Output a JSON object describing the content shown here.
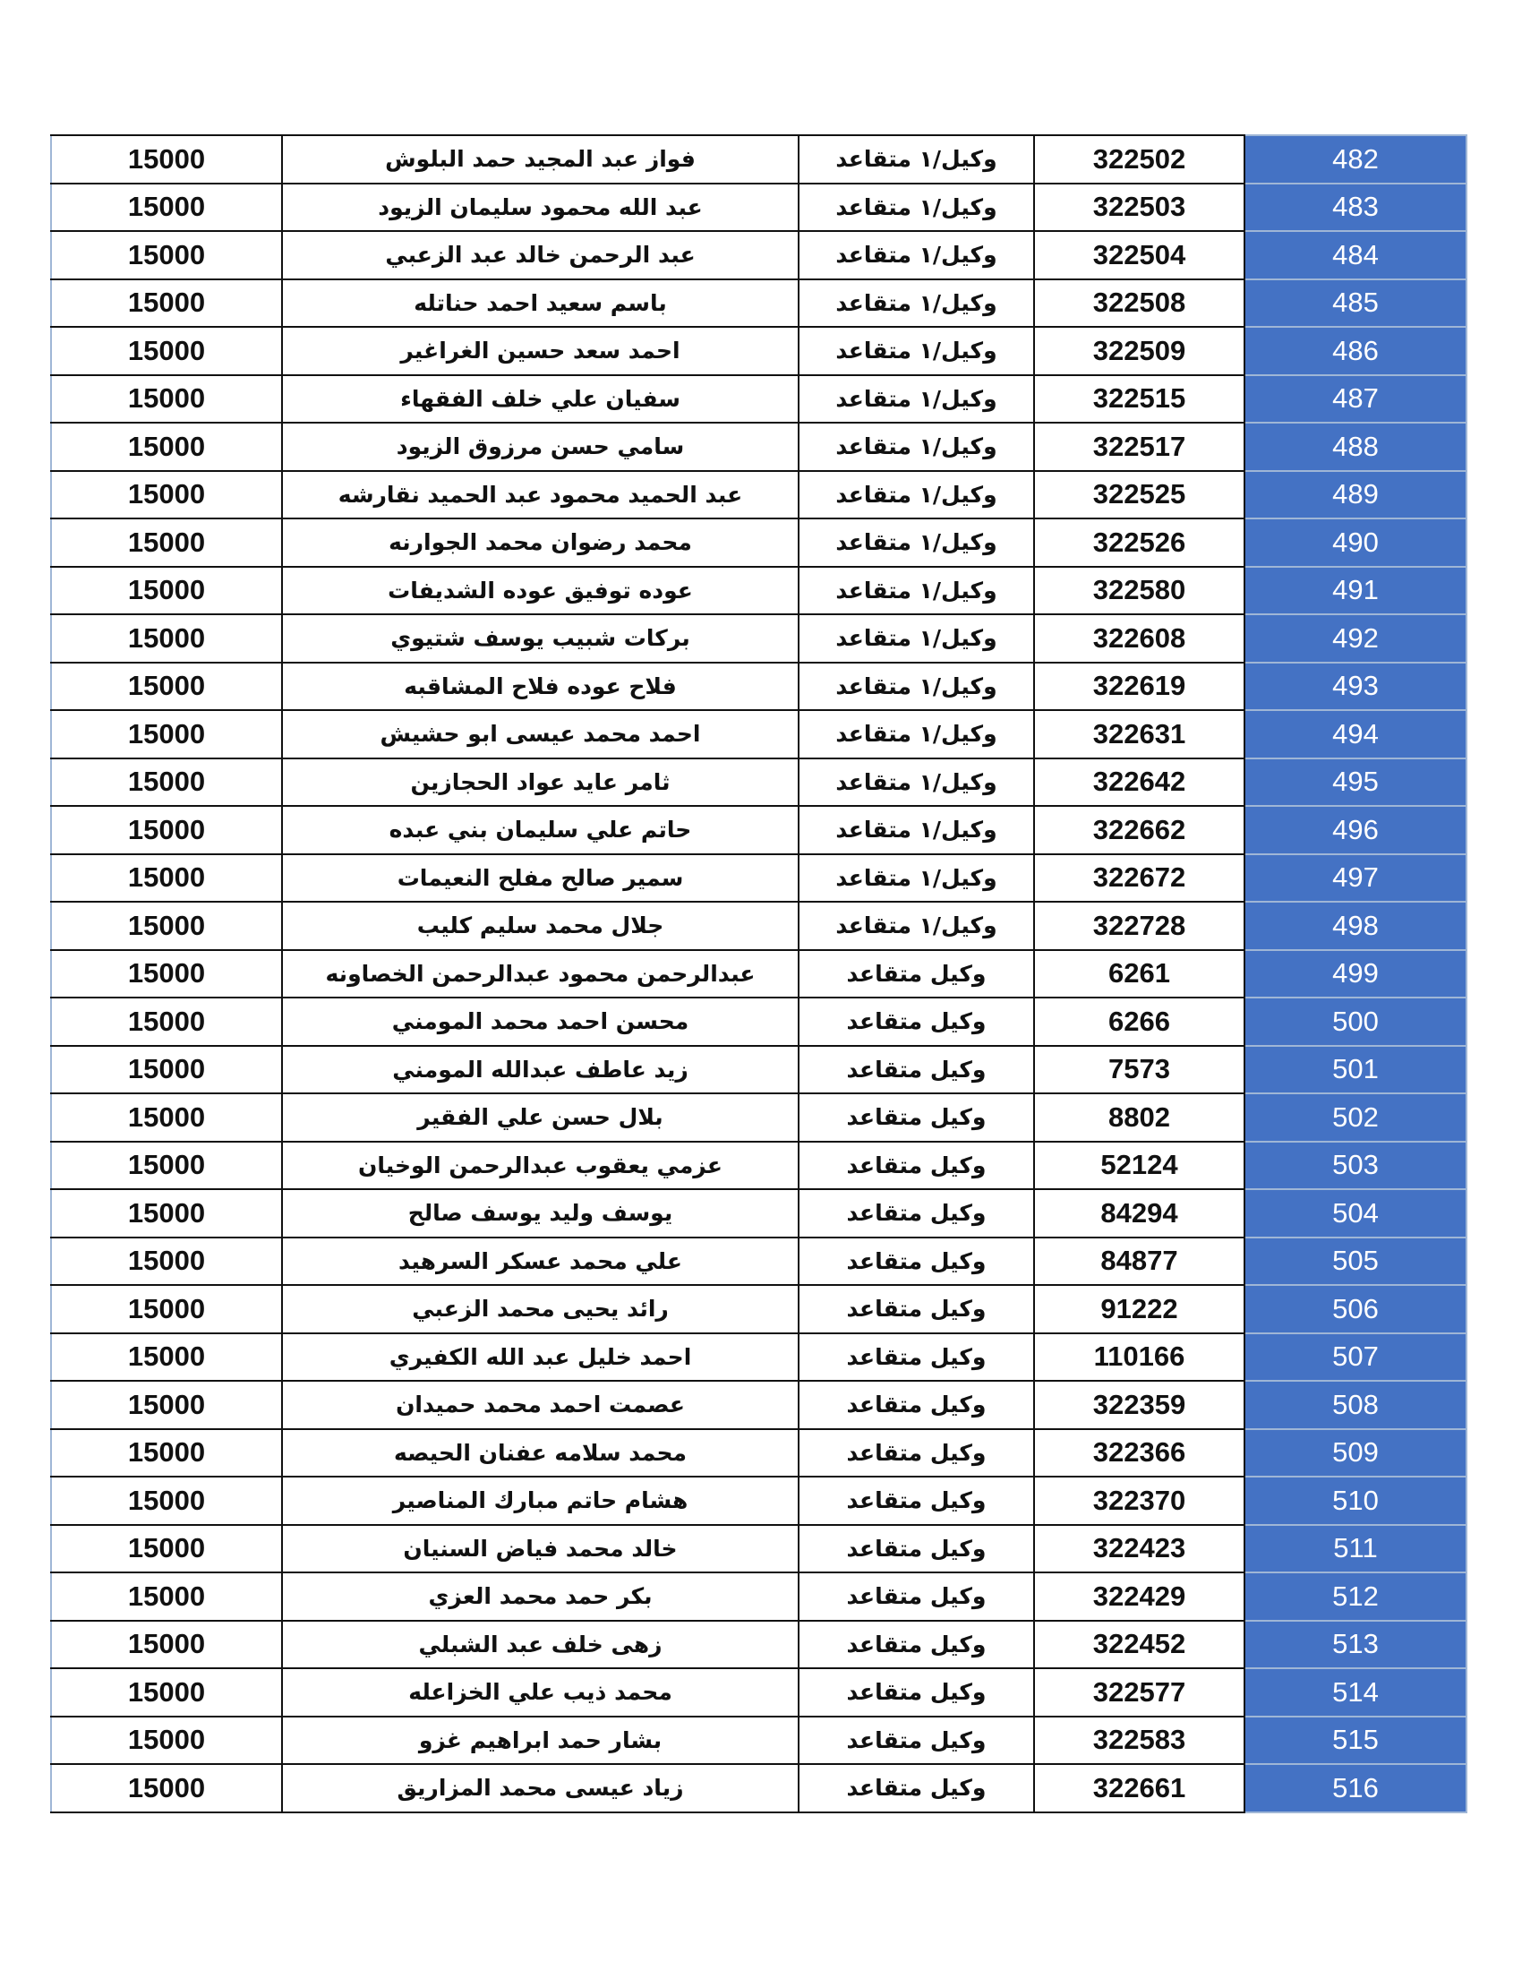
{
  "accent_color": "#4472c4",
  "rows": [
    {
      "index": "482",
      "number": "322502",
      "rank": "وكيل/١ متقاعد",
      "name": "فواز عبد المجيد حمد البلوش",
      "amount": "15000"
    },
    {
      "index": "483",
      "number": "322503",
      "rank": "وكيل/١ متقاعد",
      "name": "عبد الله محمود سليمان الزيود",
      "amount": "15000"
    },
    {
      "index": "484",
      "number": "322504",
      "rank": "وكيل/١ متقاعد",
      "name": "عبد الرحمن خالد عبد الزعبي",
      "amount": "15000"
    },
    {
      "index": "485",
      "number": "322508",
      "rank": "وكيل/١ متقاعد",
      "name": "باسم سعيد احمد حناتله",
      "amount": "15000"
    },
    {
      "index": "486",
      "number": "322509",
      "rank": "وكيل/١ متقاعد",
      "name": "احمد سعد حسين الغراغير",
      "amount": "15000"
    },
    {
      "index": "487",
      "number": "322515",
      "rank": "وكيل/١ متقاعد",
      "name": "سفيان علي خلف الفقهاء",
      "amount": "15000"
    },
    {
      "index": "488",
      "number": "322517",
      "rank": "وكيل/١ متقاعد",
      "name": "سامي حسن مرزوق الزيود",
      "amount": "15000"
    },
    {
      "index": "489",
      "number": "322525",
      "rank": "وكيل/١ متقاعد",
      "name": "عبد الحميد محمود عبد الحميد نقارشه",
      "amount": "15000"
    },
    {
      "index": "490",
      "number": "322526",
      "rank": "وكيل/١ متقاعد",
      "name": "محمد رضوان محمد الجوارنه",
      "amount": "15000"
    },
    {
      "index": "491",
      "number": "322580",
      "rank": "وكيل/١ متقاعد",
      "name": "عوده توفيق عوده الشديفات",
      "amount": "15000"
    },
    {
      "index": "492",
      "number": "322608",
      "rank": "وكيل/١ متقاعد",
      "name": "بركات شبيب يوسف شتيوي",
      "amount": "15000"
    },
    {
      "index": "493",
      "number": "322619",
      "rank": "وكيل/١ متقاعد",
      "name": "فلاح عوده فلاح المشاقبه",
      "amount": "15000"
    },
    {
      "index": "494",
      "number": "322631",
      "rank": "وكيل/١ متقاعد",
      "name": "احمد محمد عيسى ابو حشيش",
      "amount": "15000"
    },
    {
      "index": "495",
      "number": "322642",
      "rank": "وكيل/١ متقاعد",
      "name": "ثامر عايد عواد الحجازين",
      "amount": "15000"
    },
    {
      "index": "496",
      "number": "322662",
      "rank": "وكيل/١ متقاعد",
      "name": "حاتم علي سليمان بني عبده",
      "amount": "15000"
    },
    {
      "index": "497",
      "number": "322672",
      "rank": "وكيل/١ متقاعد",
      "name": "سمير صالح مفلح النعيمات",
      "amount": "15000"
    },
    {
      "index": "498",
      "number": "322728",
      "rank": "وكيل/١ متقاعد",
      "name": "جلال محمد سليم كليب",
      "amount": "15000"
    },
    {
      "index": "499",
      "number": "6261",
      "rank": "وكيل متقاعد",
      "name": "عبدالرحمن محمود عبدالرحمن الخصاونه",
      "amount": "15000"
    },
    {
      "index": "500",
      "number": "6266",
      "rank": "وكيل متقاعد",
      "name": "محسن احمد محمد المومني",
      "amount": "15000"
    },
    {
      "index": "501",
      "number": "7573",
      "rank": "وكيل متقاعد",
      "name": "زيد عاطف عبدالله المومني",
      "amount": "15000"
    },
    {
      "index": "502",
      "number": "8802",
      "rank": "وكيل متقاعد",
      "name": "بلال حسن علي الفقير",
      "amount": "15000"
    },
    {
      "index": "503",
      "number": "52124",
      "rank": "وكيل متقاعد",
      "name": "عزمي يعقوب عبدالرحمن الوخيان",
      "amount": "15000"
    },
    {
      "index": "504",
      "number": "84294",
      "rank": "وكيل متقاعد",
      "name": "يوسف وليد يوسف صالح",
      "amount": "15000"
    },
    {
      "index": "505",
      "number": "84877",
      "rank": "وكيل متقاعد",
      "name": "علي محمد عسكر السرهيد",
      "amount": "15000"
    },
    {
      "index": "506",
      "number": "91222",
      "rank": "وكيل متقاعد",
      "name": "رائد يحيى محمد الزعبي",
      "amount": "15000"
    },
    {
      "index": "507",
      "number": "110166",
      "rank": "وكيل متقاعد",
      "name": "احمد خليل عبد الله الكفيري",
      "amount": "15000"
    },
    {
      "index": "508",
      "number": "322359",
      "rank": "وكيل متقاعد",
      "name": "عصمت احمد محمد حميدان",
      "amount": "15000"
    },
    {
      "index": "509",
      "number": "322366",
      "rank": "وكيل متقاعد",
      "name": "محمد سلامه عفنان الحيصه",
      "amount": "15000"
    },
    {
      "index": "510",
      "number": "322370",
      "rank": "وكيل متقاعد",
      "name": "هشام حاتم مبارك المناصير",
      "amount": "15000"
    },
    {
      "index": "511",
      "number": "322423",
      "rank": "وكيل متقاعد",
      "name": "خالد محمد فياض السنيان",
      "amount": "15000"
    },
    {
      "index": "512",
      "number": "322429",
      "rank": "وكيل متقاعد",
      "name": "بكر حمد محمد العزي",
      "amount": "15000"
    },
    {
      "index": "513",
      "number": "322452",
      "rank": "وكيل متقاعد",
      "name": "زهى خلف عبد الشبلي",
      "amount": "15000"
    },
    {
      "index": "514",
      "number": "322577",
      "rank": "وكيل متقاعد",
      "name": "محمد ذيب علي الخزاعله",
      "amount": "15000"
    },
    {
      "index": "515",
      "number": "322583",
      "rank": "وكيل متقاعد",
      "name": "بشار حمد ابراهيم غزو",
      "amount": "15000"
    },
    {
      "index": "516",
      "number": "322661",
      "rank": "وكيل متقاعد",
      "name": "زياد عيسى محمد المزاريق",
      "amount": "15000"
    }
  ]
}
